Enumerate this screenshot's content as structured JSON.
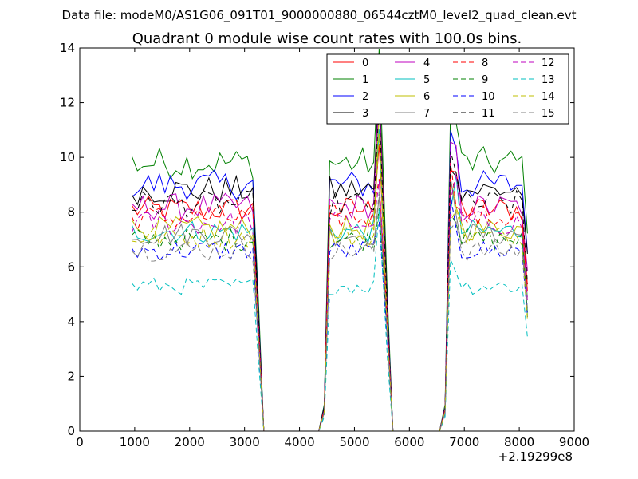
{
  "figure": {
    "suptitle": "Data file: modeM0/AS1G06_091T01_9000000880_06544cztM0_level2_quad_clean.evt"
  },
  "chart_data": {
    "type": "line",
    "title": "Quadrant 0 module wise count rates with 100.0s bins.",
    "xlabel": "",
    "ylabel": "",
    "x_offset_label": "+2.19299e8",
    "xlim": [
      0,
      9000
    ],
    "ylim": [
      0,
      14
    ],
    "xticks": [
      0,
      1000,
      2000,
      3000,
      4000,
      5000,
      6000,
      7000,
      8000,
      9000
    ],
    "yticks": [
      0,
      2,
      4,
      6,
      8,
      10,
      12,
      14
    ],
    "grid": false,
    "legend_position": "top-right",
    "gaps": [
      [
        3350,
        4350
      ],
      [
        5700,
        6550
      ]
    ],
    "segments": [
      {
        "start": 950,
        "ramp_end": 3350
      },
      {
        "start": 4350,
        "ramp_end": 5700
      },
      {
        "start": 6550,
        "ramp_end": 8200
      }
    ],
    "series": [
      {
        "name": "0",
        "color": "#ff0000",
        "style": "solid",
        "level": 8.1
      },
      {
        "name": "1",
        "color": "#008000",
        "style": "solid",
        "level": 9.8
      },
      {
        "name": "2",
        "color": "#0000ff",
        "style": "solid",
        "level": 9.0
      },
      {
        "name": "3",
        "color": "#000000",
        "style": "solid",
        "level": 8.8
      },
      {
        "name": "4",
        "color": "#bf00bf",
        "style": "solid",
        "level": 8.2
      },
      {
        "name": "5",
        "color": "#00bfbf",
        "style": "solid",
        "level": 7.3
      },
      {
        "name": "6",
        "color": "#bfbf00",
        "style": "solid",
        "level": 7.4
      },
      {
        "name": "7",
        "color": "#808080",
        "style": "solid",
        "level": 7.2
      },
      {
        "name": "8",
        "color": "#ff0000",
        "style": "dashed",
        "level": 7.8
      },
      {
        "name": "9",
        "color": "#008000",
        "style": "dashed",
        "level": 7.0
      },
      {
        "name": "10",
        "color": "#0000ff",
        "style": "dashed",
        "level": 6.6
      },
      {
        "name": "11",
        "color": "#000000",
        "style": "dashed",
        "level": 8.3
      },
      {
        "name": "12",
        "color": "#bf00bf",
        "style": "dashed",
        "level": 7.6
      },
      {
        "name": "13",
        "color": "#00bfbf",
        "style": "dashed",
        "level": 5.3
      },
      {
        "name": "14",
        "color": "#bfbf00",
        "style": "dashed",
        "level": 7.1
      },
      {
        "name": "15",
        "color": "#808080",
        "style": "dashed",
        "level": 6.6
      }
    ]
  }
}
